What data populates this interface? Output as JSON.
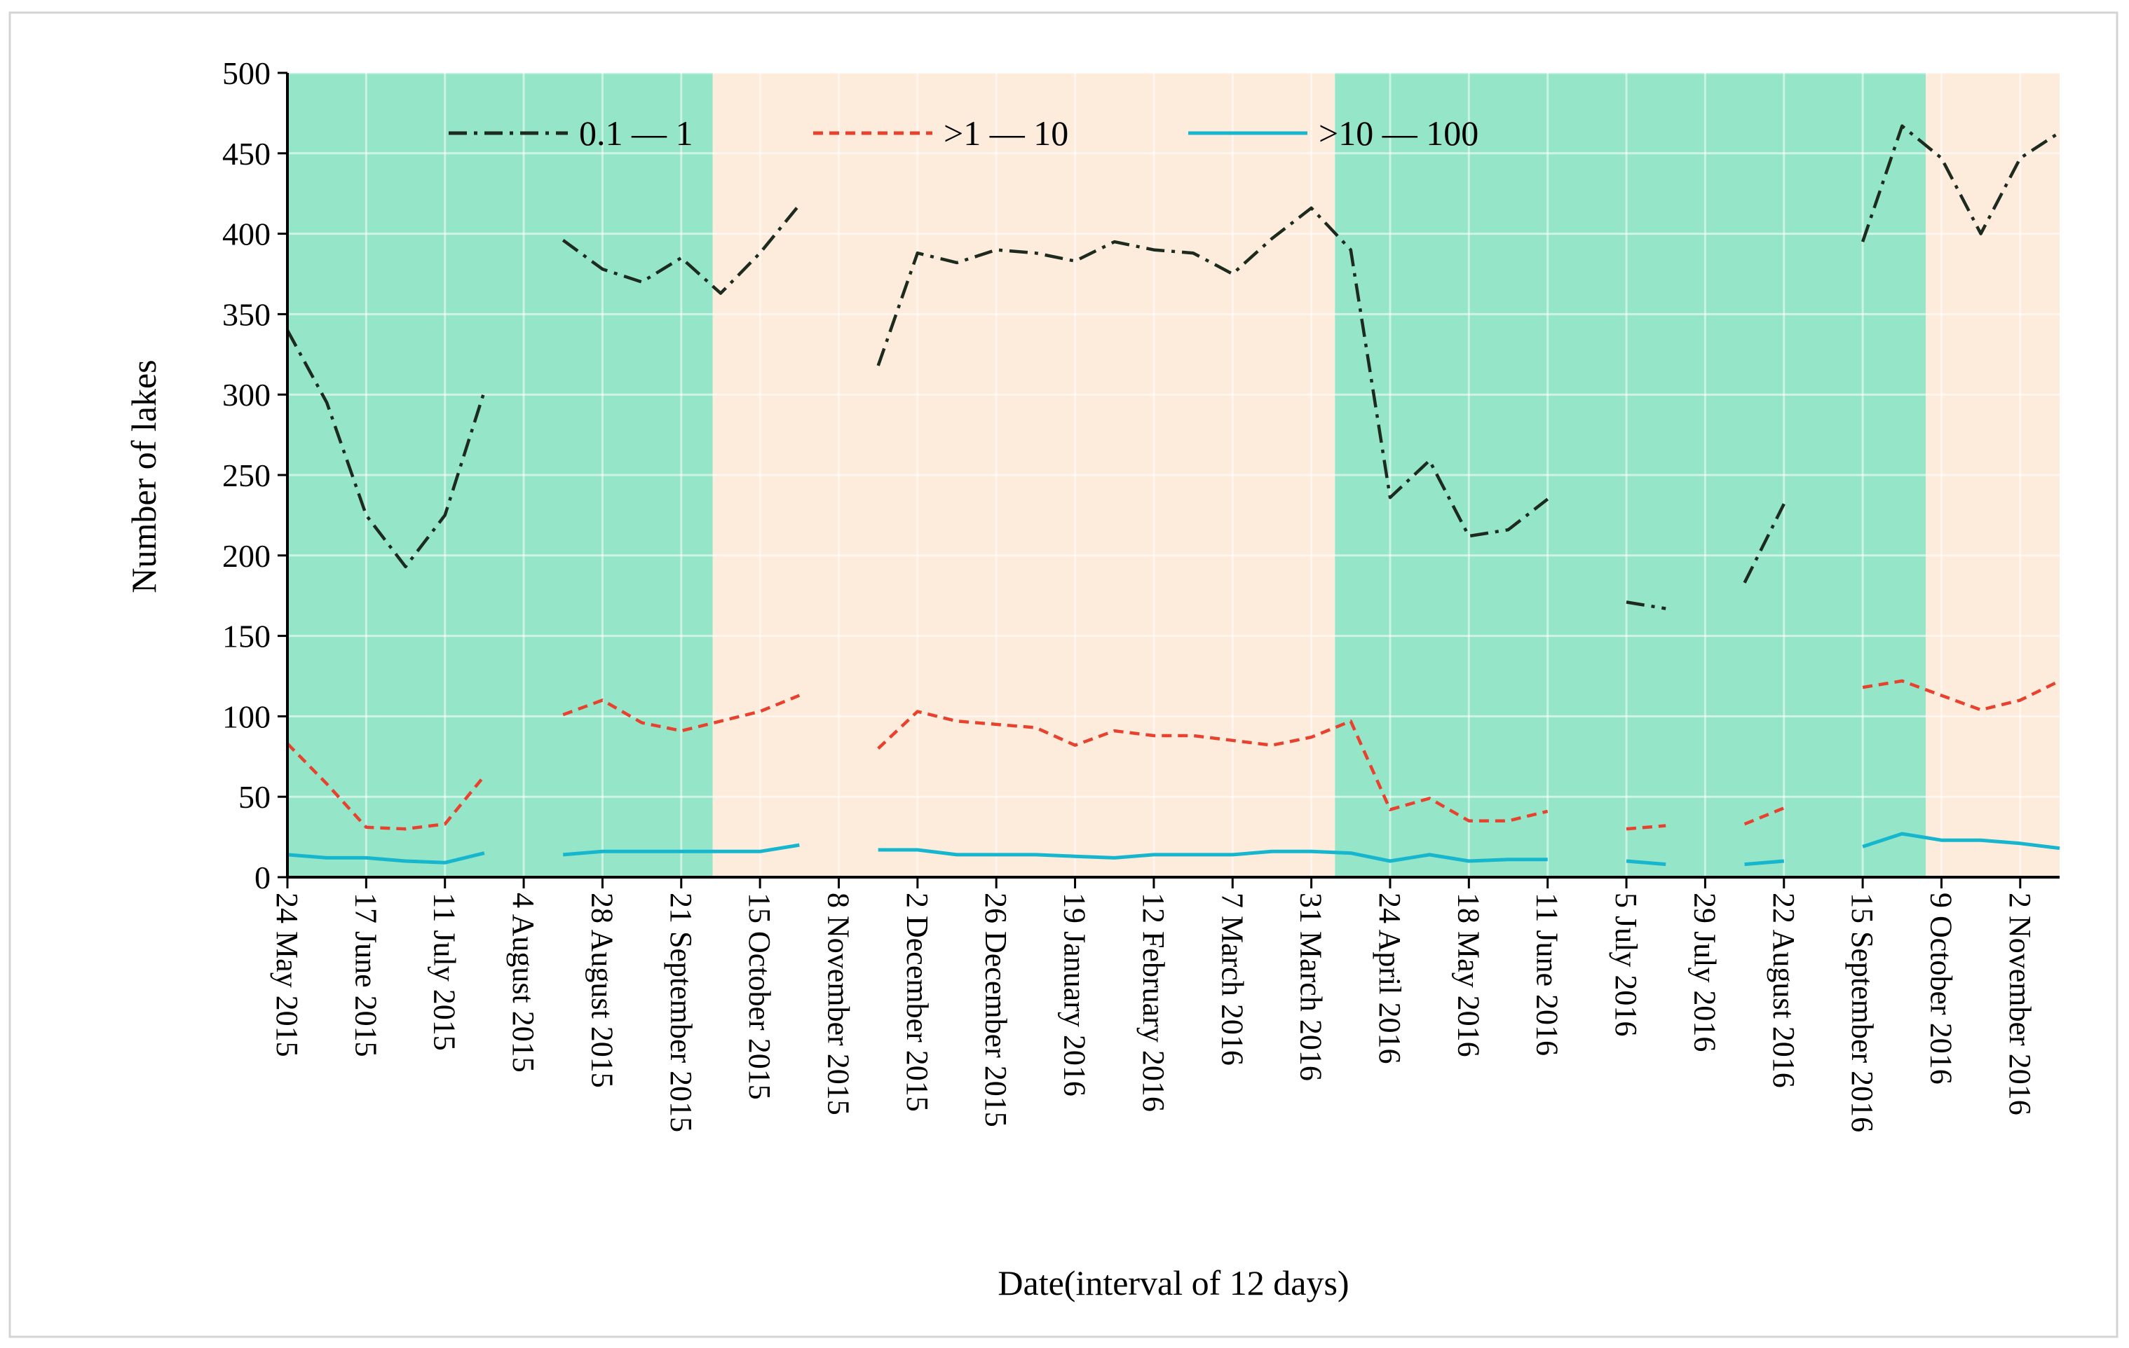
{
  "chart_data": {
    "type": "line",
    "title": "",
    "xlabel": "Date(interval of 12 days)",
    "ylabel": "Number of lakes",
    "ylim": [
      0,
      500
    ],
    "yticks": [
      0,
      50,
      100,
      150,
      200,
      250,
      300,
      350,
      400,
      450,
      500
    ],
    "x_tick_labels": [
      "24 May 2015",
      "17 June 2015",
      "11 July 2015",
      "4 August 2015",
      "28 August 2015",
      "21 September 2015",
      "15 October 2015",
      "8 November 2015",
      "2 December 2015",
      "26 December 2015",
      "19 January 2016",
      "12 February 2016",
      "7 March 2016",
      "31 March 2016",
      "24 April 2016",
      "18 May 2016",
      "11 June 2016",
      "5 July 2016",
      "29 July 2016",
      "22 August 2016",
      "15 September 2016",
      "9 October 2016",
      "2 November 2016"
    ],
    "x_tick_index": [
      0,
      2,
      4,
      6,
      8,
      10,
      12,
      14,
      16,
      18,
      20,
      22,
      24,
      26,
      28,
      30,
      32,
      34,
      36,
      38,
      40,
      42,
      44
    ],
    "n_points": 46,
    "grid": true,
    "legend_position": "top",
    "background_bands": [
      {
        "from": 0,
        "to": 10.8,
        "color": "#95e6c8",
        "season": "green"
      },
      {
        "from": 10.8,
        "to": 26.6,
        "color": "#fdebdc",
        "season": "peach"
      },
      {
        "from": 26.6,
        "to": 41.6,
        "color": "#95e6c8",
        "season": "green"
      },
      {
        "from": 41.6,
        "to": 45,
        "color": "#fdebdc",
        "season": "peach"
      }
    ],
    "series": [
      {
        "name": "0.1 — 1",
        "color": "#1d2b1f",
        "dash": "dashdot",
        "values": [
          340,
          295,
          225,
          193,
          225,
          302,
          null,
          396,
          378,
          370,
          385,
          363,
          388,
          418,
          null,
          318,
          388,
          382,
          390,
          388,
          383,
          395,
          390,
          388,
          375,
          397,
          416,
          390,
          236,
          259,
          212,
          216,
          235,
          null,
          171,
          167,
          null,
          183,
          232,
          null,
          395,
          467,
          447,
          400,
          447,
          463
        ]
      },
      {
        "name": ">1 — 10",
        "color": "#e8412d",
        "dash": "dashed",
        "values": [
          83,
          58,
          31,
          30,
          33,
          63,
          null,
          101,
          110,
          96,
          91,
          97,
          103,
          113,
          null,
          80,
          103,
          97,
          95,
          93,
          82,
          91,
          88,
          88,
          85,
          82,
          87,
          97,
          42,
          49,
          35,
          35,
          41,
          null,
          30,
          32,
          null,
          33,
          43,
          null,
          118,
          122,
          113,
          104,
          110,
          122
        ]
      },
      {
        "name": ">10 — 100",
        "color": "#17b6cf",
        "dash": "solid",
        "values": [
          14,
          12,
          12,
          10,
          9,
          15,
          null,
          14,
          16,
          16,
          16,
          16,
          16,
          20,
          null,
          17,
          17,
          14,
          14,
          14,
          13,
          12,
          14,
          14,
          14,
          16,
          16,
          15,
          10,
          14,
          10,
          11,
          11,
          null,
          10,
          8,
          null,
          8,
          10,
          null,
          19,
          27,
          23,
          23,
          21,
          18
        ]
      }
    ]
  }
}
